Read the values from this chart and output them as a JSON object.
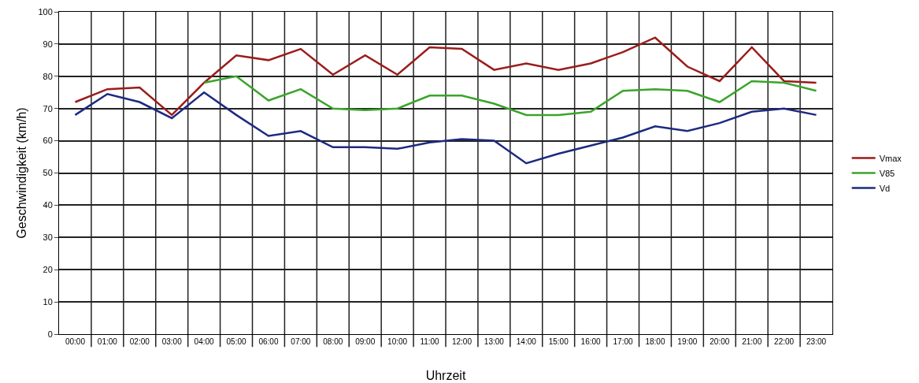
{
  "chart_data": {
    "type": "line",
    "xlabel": "Uhrzeit",
    "ylabel": "Geschwindigkeit (km/h)",
    "categories": [
      "00:00",
      "01:00",
      "02:00",
      "03:00",
      "04:00",
      "05:00",
      "06:00",
      "07:00",
      "08:00",
      "09:00",
      "10:00",
      "11:00",
      "12:00",
      "13:00",
      "14:00",
      "15:00",
      "16:00",
      "17:00",
      "18:00",
      "19:00",
      "20:00",
      "21:00",
      "22:00",
      "23:00"
    ],
    "series": [
      {
        "name": "Vmax",
        "color": "#9b1c1c",
        "values": [
          72,
          76,
          76.5,
          68,
          78,
          86.5,
          85,
          88.5,
          80.5,
          86.5,
          80.5,
          89,
          88.5,
          82,
          84,
          82,
          84,
          87.5,
          92,
          83,
          78.5,
          89,
          78.5,
          78
        ]
      },
      {
        "name": "V85",
        "color": "#3aa52a",
        "values": [
          null,
          null,
          null,
          null,
          78,
          80,
          72.5,
          76,
          70,
          69.5,
          70,
          74,
          74,
          71.5,
          68,
          68,
          69,
          75.5,
          76,
          75.5,
          72,
          78.5,
          78,
          75.5
        ]
      },
      {
        "name": "Vd",
        "color": "#1c2a80",
        "values": [
          68,
          74.5,
          72,
          67,
          75,
          68,
          61.5,
          63,
          58,
          58,
          57.5,
          59.5,
          60.5,
          60,
          53,
          56,
          58.5,
          61,
          64.5,
          63,
          65.5,
          69,
          70,
          68
        ]
      }
    ],
    "ylim": [
      0,
      100
    ],
    "yticks": [
      0,
      10,
      20,
      30,
      40,
      50,
      60,
      70,
      80,
      90,
      100
    ],
    "grid": true,
    "legend": "right",
    "marker": "none",
    "line_style": "solid"
  }
}
